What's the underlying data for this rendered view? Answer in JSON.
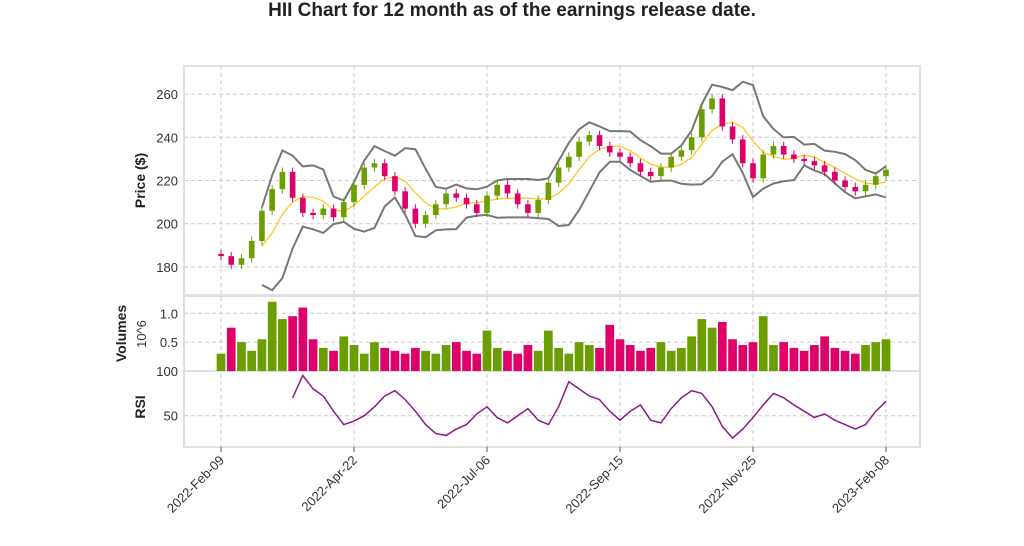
{
  "chart_data": {
    "type": "candlestick",
    "title": "HII Chart for 12 month as of the earnings release date.",
    "x_tick_labels": [
      "2022-Feb-09",
      "2022-Apr-22",
      "2022-Jul-06",
      "2022-Sep-15",
      "2022-Nov-25",
      "2023-Feb-08"
    ],
    "grid": true,
    "colors": {
      "up": "#6b9e00",
      "down": "#e0006a",
      "sma": "#ffc820",
      "bands": "#777777",
      "rsi": "#8b1a8b"
    },
    "price": {
      "ylabel": "Price ($)",
      "yticks": [
        180,
        200,
        220,
        240,
        260
      ],
      "ylim": [
        167,
        273
      ],
      "close": [
        185,
        181,
        184,
        192,
        206,
        216,
        224,
        212,
        205,
        204,
        207,
        203,
        210,
        218,
        226,
        228,
        222,
        215,
        207,
        200,
        204,
        209,
        214,
        212,
        209,
        205,
        213,
        218,
        214,
        209,
        205,
        211,
        219,
        226,
        231,
        238,
        241,
        236,
        233,
        231,
        228,
        224,
        222,
        226,
        231,
        234,
        240,
        253,
        258,
        245,
        239,
        228,
        221,
        232,
        236,
        232,
        230,
        229,
        227,
        224,
        220,
        217,
        215,
        218,
        222,
        225
      ]
    },
    "volume": {
      "ylabel": "Volumes",
      "unit": "10^6",
      "yticks": [
        "0.5",
        "1.0"
      ],
      "ylim": [
        0,
        1.3
      ],
      "values": [
        0.3,
        0.75,
        0.5,
        0.35,
        0.55,
        1.2,
        0.9,
        0.95,
        1.1,
        0.55,
        0.4,
        0.35,
        0.6,
        0.45,
        0.3,
        0.5,
        0.4,
        0.35,
        0.3,
        0.4,
        0.35,
        0.3,
        0.45,
        0.5,
        0.35,
        0.3,
        0.7,
        0.4,
        0.35,
        0.3,
        0.45,
        0.35,
        0.7,
        0.4,
        0.3,
        0.5,
        0.45,
        0.4,
        0.8,
        0.55,
        0.45,
        0.35,
        0.4,
        0.5,
        0.35,
        0.4,
        0.6,
        0.9,
        0.75,
        0.85,
        0.55,
        0.45,
        0.5,
        0.95,
        0.45,
        0.5,
        0.4,
        0.35,
        0.45,
        0.6,
        0.4,
        0.35,
        0.3,
        0.45,
        0.5,
        0.55
      ]
    },
    "rsi": {
      "ylabel": "RSI",
      "yticks": [
        50,
        100
      ],
      "ylim": [
        15,
        100
      ],
      "values": [
        null,
        null,
        null,
        null,
        null,
        null,
        null,
        70,
        95,
        80,
        72,
        55,
        40,
        44,
        50,
        60,
        72,
        78,
        68,
        55,
        40,
        30,
        28,
        35,
        40,
        52,
        60,
        48,
        42,
        50,
        58,
        45,
        40,
        60,
        88,
        80,
        72,
        68,
        55,
        45,
        55,
        62,
        45,
        42,
        58,
        70,
        78,
        75,
        60,
        38,
        25,
        35,
        48,
        62,
        75,
        70,
        62,
        55,
        48,
        52,
        45,
        40,
        35,
        40,
        55,
        66
      ]
    }
  }
}
